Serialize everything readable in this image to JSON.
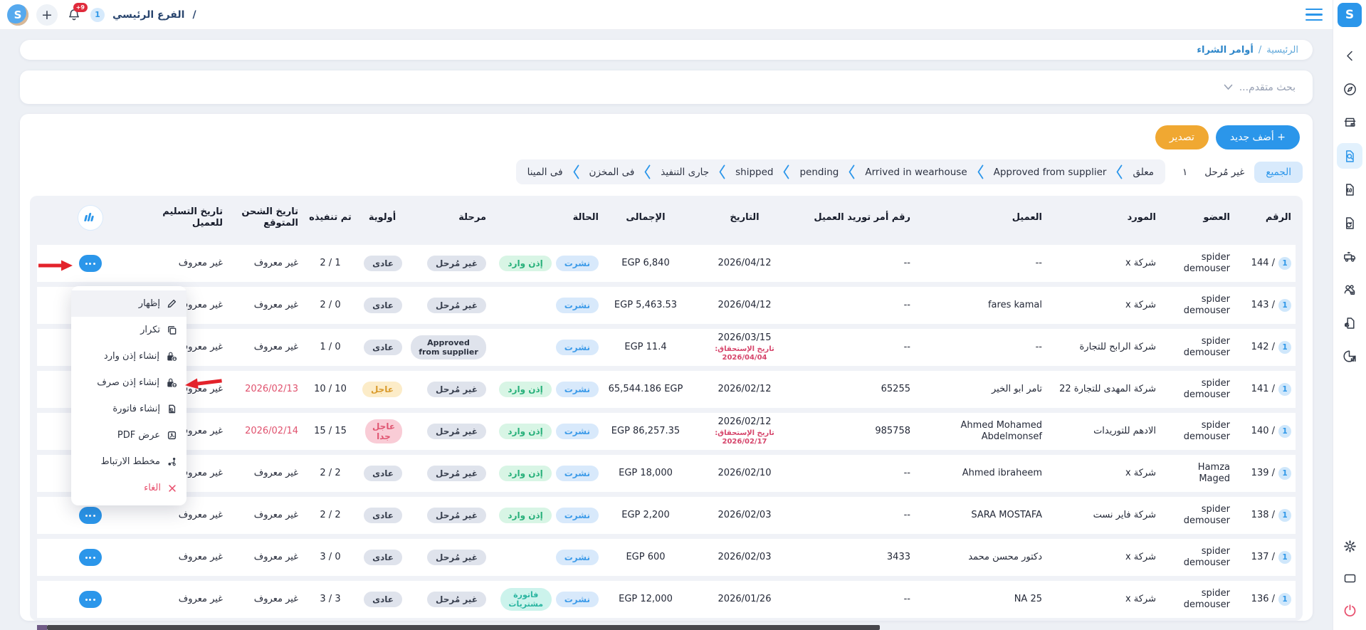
{
  "colors": {
    "accent": "#2b96ea",
    "orange": "#f0a832",
    "danger": "#e8506e",
    "success": "#27b07a",
    "teal": "#2ab5a0"
  },
  "topbar": {
    "logo_letter": "S",
    "plus": "+",
    "bell_badge": "+9",
    "branch_badge": "1",
    "branch_title": "الفرع الرئيسي",
    "branch_sep": "/"
  },
  "sidebar": {
    "logo_letter": "S",
    "items": [
      "collapse-chevron",
      "compass",
      "store",
      "purchase-orders",
      "document-info",
      "document-return",
      "shipping-truck",
      "customers",
      "products-document",
      "reports-pie"
    ],
    "active_item": "purchase-orders",
    "bottom_items": [
      "settings",
      "window",
      "power"
    ]
  },
  "breadcrumb": {
    "home": "الرئيسية",
    "sep": "/",
    "current": "أوامر الشراء"
  },
  "search": {
    "label": "بحث متقدم..."
  },
  "toolbar": {
    "add": "+ أضف جديد",
    "export": "تصدير"
  },
  "filters": {
    "all": "الجميع",
    "secondary": "غير مُرحل",
    "count": "١",
    "pipeline": [
      "معلق",
      "Approved from supplier",
      "Arrived in wearhouse",
      "pending",
      "shipped",
      "جارى التنفيذ",
      "فى المخزن",
      "فى المينا"
    ]
  },
  "table": {
    "headers": [
      "الرقم",
      "العضو",
      "المورد",
      "العميل",
      "رقم أمر توريد العميل",
      "التاريخ",
      "الإجمالى",
      "الحالة",
      "مرحلة",
      "أولوية",
      "تم تنفيذه",
      "تاريخ الشحن المتوقع",
      "تاريخ التسليم للعميل"
    ],
    "rows": [
      {
        "badge": "1",
        "num": "144 /",
        "member": "spider demouser",
        "supplier": "شركة x",
        "client": "--",
        "po": "--",
        "date": "2026/04/12",
        "due": "",
        "total": "EGP 6,840",
        "status": [
          {
            "label": "نشرت",
            "type": "blue"
          },
          {
            "label": "إذن وارد",
            "type": "green"
          }
        ],
        "stage": {
          "label": "غير مُرحل",
          "type": "gray"
        },
        "priority": {
          "label": "عادى",
          "type": "gray"
        },
        "done": "2 / 1",
        "ship": "غير معروف",
        "ship_red": false,
        "delivery": "غير معروف"
      },
      {
        "badge": "1",
        "num": "143 /",
        "member": "spider demouser",
        "supplier": "شركة x",
        "client": "fares kamal",
        "po": "--",
        "date": "2026/04/12",
        "due": "",
        "total": "EGP 5,463.53",
        "status": [
          {
            "label": "نشرت",
            "type": "blue"
          }
        ],
        "stage": {
          "label": "غير مُرحل",
          "type": "gray"
        },
        "priority": {
          "label": "عادى",
          "type": "gray"
        },
        "done": "2 / 0",
        "ship": "غير معروف",
        "ship_red": false,
        "delivery": "غير معروف"
      },
      {
        "badge": "1",
        "num": "142 /",
        "member": "spider demouser",
        "supplier": "شركة الرابح للتجارة",
        "client": "--",
        "po": "--",
        "date": "2026/03/15",
        "due": "تاريخ الإستحقاق: 2026/04/04",
        "total": "EGP 11.4",
        "status": [
          {
            "label": "نشرت",
            "type": "blue"
          }
        ],
        "stage": {
          "label": "Approved from supplier",
          "type": "gray2"
        },
        "priority": {
          "label": "عادى",
          "type": "gray"
        },
        "done": "1 / 0",
        "ship": "غير معروف",
        "ship_red": false,
        "delivery": "غير معروف"
      },
      {
        "badge": "1",
        "num": "141 /",
        "member": "spider demouser",
        "supplier": "شركة المهدى للتجارة 22",
        "client": "تامر ابو الخير",
        "po": "65255",
        "date": "2026/02/12",
        "due": "",
        "total": "65,544.186 EGP",
        "status": [
          {
            "label": "نشرت",
            "type": "blue"
          },
          {
            "label": "إذن وارد",
            "type": "green"
          }
        ],
        "stage": {
          "label": "غير مُرحل",
          "type": "gray"
        },
        "priority": {
          "label": "عاجل",
          "type": "warn"
        },
        "done": "10 / 10",
        "ship": "2026/02/13",
        "ship_red": true,
        "delivery": "غير معروف"
      },
      {
        "badge": "1",
        "num": "140 /",
        "member": "spider demouser",
        "supplier": "الادهم للتوريدات",
        "client": "Ahmed Mohamed Abdelmonsef",
        "po": "985758",
        "date": "2026/02/12",
        "due": "تاريخ الإستحقاق: 2026/02/17",
        "total": "EGP 86,257.35",
        "status": [
          {
            "label": "نشرت",
            "type": "blue"
          },
          {
            "label": "إذن وارد",
            "type": "green"
          }
        ],
        "stage": {
          "label": "غير مُرحل",
          "type": "gray"
        },
        "priority": {
          "label": "عاجل جدا",
          "type": "danger"
        },
        "done": "15 / 15",
        "ship": "2026/02/14",
        "ship_red": true,
        "delivery": "غير معروف"
      },
      {
        "badge": "1",
        "num": "139 /",
        "member": "Hamza Maged",
        "supplier": "شركة x",
        "client": "Ahmed ibraheem",
        "po": "--",
        "date": "2026/02/10",
        "due": "",
        "total": "EGP 18,000",
        "status": [
          {
            "label": "نشرت",
            "type": "blue"
          },
          {
            "label": "إذن وارد",
            "type": "green"
          }
        ],
        "stage": {
          "label": "غير مُرحل",
          "type": "gray"
        },
        "priority": {
          "label": "عادى",
          "type": "gray"
        },
        "done": "2 / 2",
        "ship": "غير معروف",
        "ship_red": false,
        "delivery": "غير معروف"
      },
      {
        "badge": "1",
        "num": "138 /",
        "member": "spider demouser",
        "supplier": "شركة فاير نست",
        "client": "SARA MOSTAFA",
        "po": "--",
        "date": "2026/02/03",
        "due": "",
        "total": "EGP 2,200",
        "status": [
          {
            "label": "نشرت",
            "type": "blue"
          },
          {
            "label": "إذن وارد",
            "type": "green"
          }
        ],
        "stage": {
          "label": "غير مُرحل",
          "type": "gray"
        },
        "priority": {
          "label": "عادى",
          "type": "gray"
        },
        "done": "2 / 2",
        "ship": "غير معروف",
        "ship_red": false,
        "delivery": "غير معروف"
      },
      {
        "badge": "1",
        "num": "137 /",
        "member": "spider demouser",
        "supplier": "شركة x",
        "client": "دكتور محسن محمد",
        "po": "3433",
        "date": "2026/02/03",
        "due": "",
        "total": "EGP 600",
        "status": [
          {
            "label": "نشرت",
            "type": "blue"
          }
        ],
        "stage": {
          "label": "غير مُرحل",
          "type": "gray"
        },
        "priority": {
          "label": "عادى",
          "type": "gray"
        },
        "done": "3 / 0",
        "ship": "غير معروف",
        "ship_red": false,
        "delivery": "غير معروف"
      },
      {
        "badge": "1",
        "num": "136 /",
        "member": "spider demouser",
        "supplier": "شركة x",
        "client": "NA 25",
        "po": "--",
        "date": "2026/01/26",
        "due": "",
        "total": "EGP 12,000",
        "status": [
          {
            "label": "نشرت",
            "type": "blue"
          },
          {
            "label": "فاتورة مشتريات",
            "type": "teal"
          }
        ],
        "stage": {
          "label": "غير مُرحل",
          "type": "gray"
        },
        "priority": {
          "label": "عادى",
          "type": "gray"
        },
        "done": "3 / 3",
        "ship": "غير معروف",
        "ship_red": false,
        "delivery": "غير معروف"
      }
    ]
  },
  "menu": {
    "items": [
      {
        "label": "إظهار",
        "icon": "pencil",
        "highlighted": true
      },
      {
        "label": "تكرار",
        "icon": "copy"
      },
      {
        "label": "إنشاء إذن وارد",
        "icon": "box-in"
      },
      {
        "label": "إنشاء إذن صرف",
        "icon": "box-out"
      },
      {
        "label": "إنشاء فاتورة",
        "icon": "invoice"
      },
      {
        "label": "عرض PDF",
        "icon": "pdf"
      },
      {
        "label": "مخطط الارتباط",
        "icon": "link-map"
      },
      {
        "label": "الغاء",
        "icon": "x",
        "danger": true
      }
    ]
  }
}
